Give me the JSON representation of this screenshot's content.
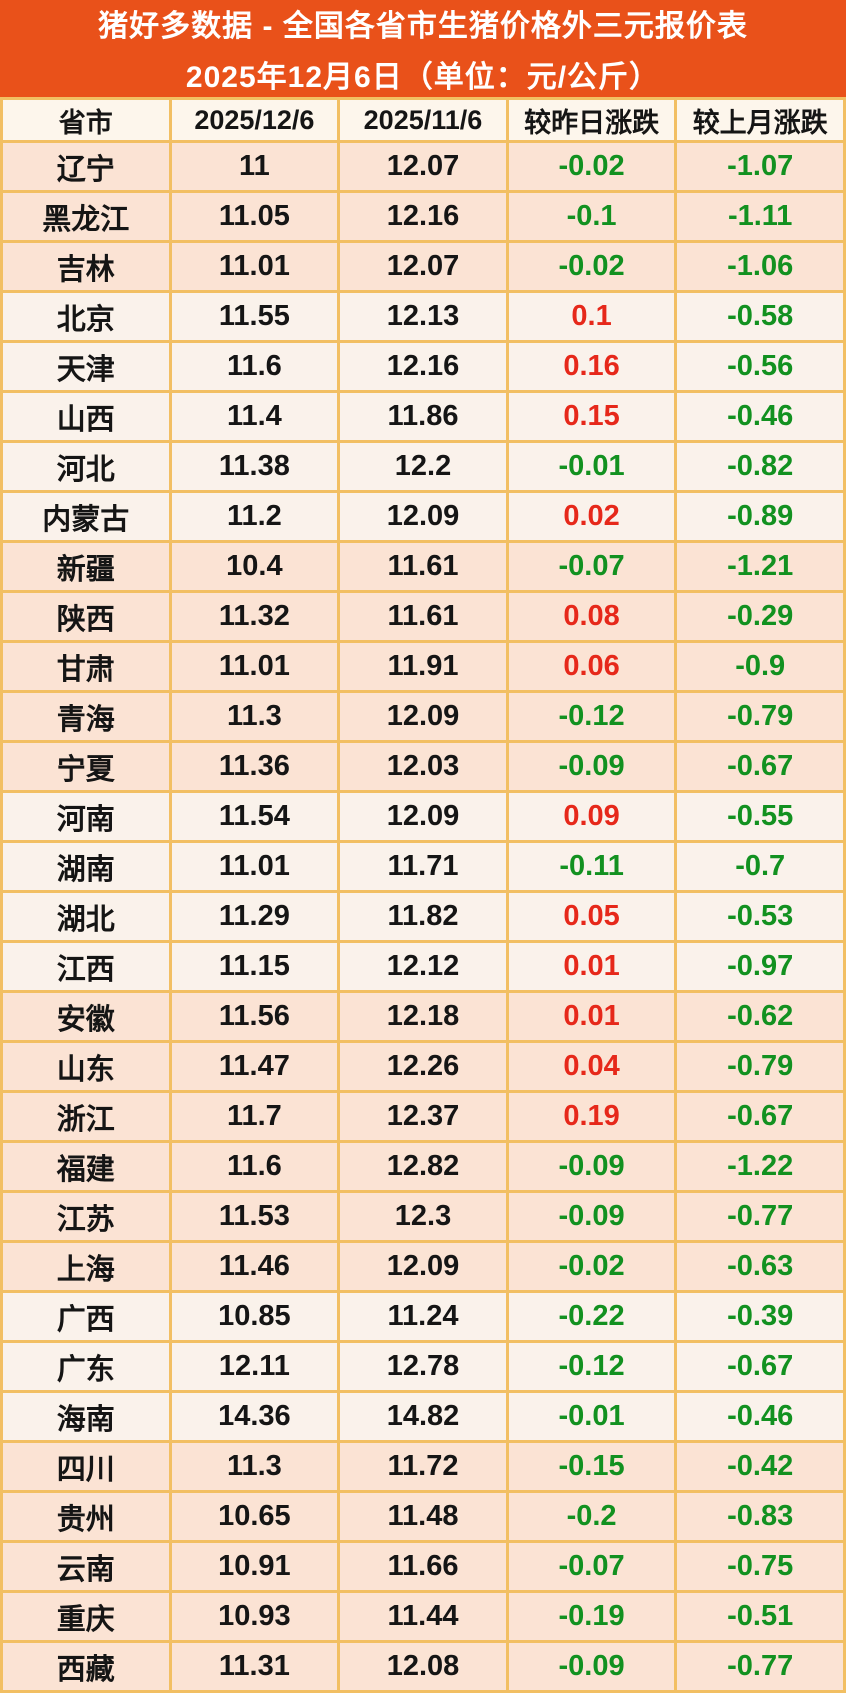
{
  "chart_data": {
    "type": "table",
    "title": "猪好多数据 - 全国各省市生猪价格外三元报价表",
    "subtitle": "2025年12月6日（单位：元/公斤）",
    "unit": "元/公斤",
    "columns": [
      "省市",
      "2025/12/6",
      "2025/11/6",
      "较昨日涨跌",
      "较上月涨跌"
    ],
    "rows": [
      {
        "province": "辽宁",
        "price_dec6": "11",
        "price_nov6": "12.07",
        "vs_yesterday": "-0.02",
        "vs_last_month": "-1.07",
        "shade": "pink"
      },
      {
        "province": "黑龙江",
        "price_dec6": "11.05",
        "price_nov6": "12.16",
        "vs_yesterday": "-0.1",
        "vs_last_month": "-1.11",
        "shade": "pink"
      },
      {
        "province": "吉林",
        "price_dec6": "11.01",
        "price_nov6": "12.07",
        "vs_yesterday": "-0.02",
        "vs_last_month": "-1.06",
        "shade": "pink"
      },
      {
        "province": "北京",
        "price_dec6": "11.55",
        "price_nov6": "12.13",
        "vs_yesterday": "0.1",
        "vs_last_month": "-0.58",
        "shade": "cream"
      },
      {
        "province": "天津",
        "price_dec6": "11.6",
        "price_nov6": "12.16",
        "vs_yesterday": "0.16",
        "vs_last_month": "-0.56",
        "shade": "cream"
      },
      {
        "province": "山西",
        "price_dec6": "11.4",
        "price_nov6": "11.86",
        "vs_yesterday": "0.15",
        "vs_last_month": "-0.46",
        "shade": "cream"
      },
      {
        "province": "河北",
        "price_dec6": "11.38",
        "price_nov6": "12.2",
        "vs_yesterday": "-0.01",
        "vs_last_month": "-0.82",
        "shade": "cream"
      },
      {
        "province": "内蒙古",
        "price_dec6": "11.2",
        "price_nov6": "12.09",
        "vs_yesterday": "0.02",
        "vs_last_month": "-0.89",
        "shade": "cream"
      },
      {
        "province": "新疆",
        "price_dec6": "10.4",
        "price_nov6": "11.61",
        "vs_yesterday": "-0.07",
        "vs_last_month": "-1.21",
        "shade": "pink"
      },
      {
        "province": "陕西",
        "price_dec6": "11.32",
        "price_nov6": "11.61",
        "vs_yesterday": "0.08",
        "vs_last_month": "-0.29",
        "shade": "pink"
      },
      {
        "province": "甘肃",
        "price_dec6": "11.01",
        "price_nov6": "11.91",
        "vs_yesterday": "0.06",
        "vs_last_month": "-0.9",
        "shade": "pink"
      },
      {
        "province": "青海",
        "price_dec6": "11.3",
        "price_nov6": "12.09",
        "vs_yesterday": "-0.12",
        "vs_last_month": "-0.79",
        "shade": "pink"
      },
      {
        "province": "宁夏",
        "price_dec6": "11.36",
        "price_nov6": "12.03",
        "vs_yesterday": "-0.09",
        "vs_last_month": "-0.67",
        "shade": "pink"
      },
      {
        "province": "河南",
        "price_dec6": "11.54",
        "price_nov6": "12.09",
        "vs_yesterday": "0.09",
        "vs_last_month": "-0.55",
        "shade": "cream"
      },
      {
        "province": "湖南",
        "price_dec6": "11.01",
        "price_nov6": "11.71",
        "vs_yesterday": "-0.11",
        "vs_last_month": "-0.7",
        "shade": "cream"
      },
      {
        "province": "湖北",
        "price_dec6": "11.29",
        "price_nov6": "11.82",
        "vs_yesterday": "0.05",
        "vs_last_month": "-0.53",
        "shade": "cream"
      },
      {
        "province": "江西",
        "price_dec6": "11.15",
        "price_nov6": "12.12",
        "vs_yesterday": "0.01",
        "vs_last_month": "-0.97",
        "shade": "cream"
      },
      {
        "province": "安徽",
        "price_dec6": "11.56",
        "price_nov6": "12.18",
        "vs_yesterday": "0.01",
        "vs_last_month": "-0.62",
        "shade": "pink"
      },
      {
        "province": "山东",
        "price_dec6": "11.47",
        "price_nov6": "12.26",
        "vs_yesterday": "0.04",
        "vs_last_month": "-0.79",
        "shade": "pink"
      },
      {
        "province": "浙江",
        "price_dec6": "11.7",
        "price_nov6": "12.37",
        "vs_yesterday": "0.19",
        "vs_last_month": "-0.67",
        "shade": "pink"
      },
      {
        "province": "福建",
        "price_dec6": "11.6",
        "price_nov6": "12.82",
        "vs_yesterday": "-0.09",
        "vs_last_month": "-1.22",
        "shade": "pink"
      },
      {
        "province": "江苏",
        "price_dec6": "11.53",
        "price_nov6": "12.3",
        "vs_yesterday": "-0.09",
        "vs_last_month": "-0.77",
        "shade": "pink"
      },
      {
        "province": "上海",
        "price_dec6": "11.46",
        "price_nov6": "12.09",
        "vs_yesterday": "-0.02",
        "vs_last_month": "-0.63",
        "shade": "pink"
      },
      {
        "province": "广西",
        "price_dec6": "10.85",
        "price_nov6": "11.24",
        "vs_yesterday": "-0.22",
        "vs_last_month": "-0.39",
        "shade": "cream"
      },
      {
        "province": "广东",
        "price_dec6": "12.11",
        "price_nov6": "12.78",
        "vs_yesterday": "-0.12",
        "vs_last_month": "-0.67",
        "shade": "cream"
      },
      {
        "province": "海南",
        "price_dec6": "14.36",
        "price_nov6": "14.82",
        "vs_yesterday": "-0.01",
        "vs_last_month": "-0.46",
        "shade": "cream"
      },
      {
        "province": "四川",
        "price_dec6": "11.3",
        "price_nov6": "11.72",
        "vs_yesterday": "-0.15",
        "vs_last_month": "-0.42",
        "shade": "pink"
      },
      {
        "province": "贵州",
        "price_dec6": "10.65",
        "price_nov6": "11.48",
        "vs_yesterday": "-0.2",
        "vs_last_month": "-0.83",
        "shade": "pink"
      },
      {
        "province": "云南",
        "price_dec6": "10.91",
        "price_nov6": "11.66",
        "vs_yesterday": "-0.07",
        "vs_last_month": "-0.75",
        "shade": "pink"
      },
      {
        "province": "重庆",
        "price_dec6": "10.93",
        "price_nov6": "11.44",
        "vs_yesterday": "-0.19",
        "vs_last_month": "-0.51",
        "shade": "pink"
      },
      {
        "province": "西藏",
        "price_dec6": "11.31",
        "price_nov6": "12.08",
        "vs_yesterday": "-0.09",
        "vs_last_month": "-0.77",
        "shade": "pink"
      }
    ],
    "legend_semantics": {
      "rise_color_meaning": "上涨（正值）",
      "fall_color_meaning": "下跌（负值）"
    }
  },
  "colors": {
    "title_bg": "#E9511A",
    "title_text": "#FFFFFF",
    "grid_border": "#F2BF63",
    "header_row_bg": "#FDF6EC",
    "row_pink": "#FBE3D4",
    "row_cream": "#FAF2EB",
    "rise_red": "#E6281A",
    "fall_green": "#129120",
    "text_black": "#151515"
  }
}
